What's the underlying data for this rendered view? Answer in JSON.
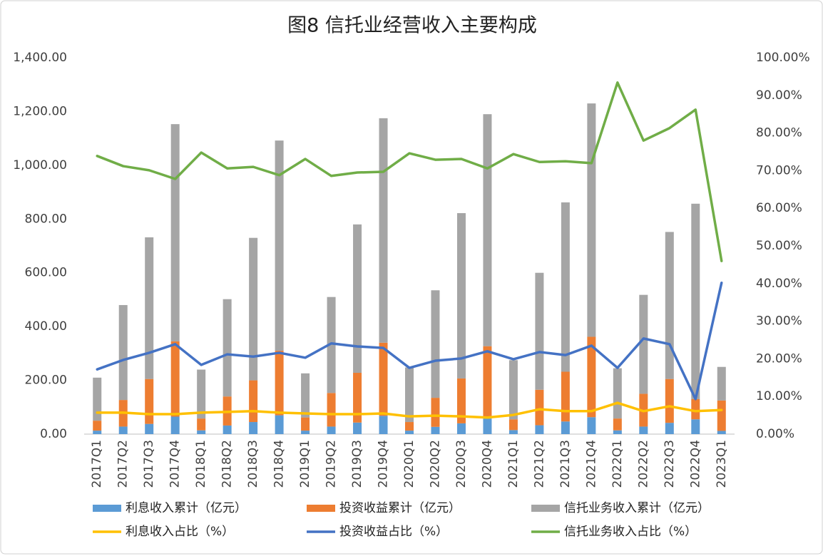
{
  "chart_data": {
    "type": "bar",
    "title": "图8  信托业经营收入主要构成",
    "categories": [
      "2017Q1",
      "2017Q2",
      "2017Q3",
      "2017Q4",
      "2018Q1",
      "2018Q2",
      "2018Q3",
      "2018Q4",
      "2019Q1",
      "2019Q2",
      "2019Q3",
      "2019Q4",
      "2020Q1",
      "2020Q2",
      "2020Q3",
      "2020Q4",
      "2021Q1",
      "2021Q2",
      "2021Q3",
      "2021Q4",
      "2022Q1",
      "2022Q2",
      "2022Q3",
      "2022Q4",
      "2023Q1"
    ],
    "series": [
      {
        "name": "利息收入累计（亿元）",
        "type": "bar",
        "color": "#5b9bd5",
        "values": [
          13,
          28,
          38,
          65,
          14,
          32,
          45,
          70,
          13,
          28,
          43,
          68,
          13,
          27,
          40,
          58,
          15,
          33,
          47,
          63,
          14,
          28,
          42,
          55,
          12
        ]
      },
      {
        "name": "投资收益累计（亿元）",
        "type": "bar",
        "color": "#ed7d31",
        "values": [
          37,
          99,
          167,
          280,
          44,
          108,
          155,
          240,
          49,
          125,
          185,
          272,
          32,
          108,
          167,
          269,
          40,
          132,
          185,
          299,
          44,
          122,
          163,
          75,
          113
        ]
      },
      {
        "name": "信托业务收入累计（亿元）",
        "type": "bar",
        "color": "#a5a5a5",
        "values": [
          160,
          353,
          527,
          808,
          182,
          362,
          530,
          782,
          164,
          357,
          552,
          835,
          203,
          400,
          615,
          863,
          220,
          435,
          630,
          868,
          187,
          368,
          547,
          727,
          125
        ]
      },
      {
        "name": "利息收入占比（%）",
        "type": "line",
        "axis": "y2",
        "color": "#ffc000",
        "values": [
          5.7,
          5.7,
          5.3,
          5.3,
          5.7,
          5.9,
          6.1,
          5.7,
          5.5,
          5.3,
          5.3,
          5.5,
          4.7,
          4.9,
          4.7,
          4.4,
          5.1,
          6.6,
          6.1,
          6.1,
          8.3,
          6.1,
          7.4,
          6.1,
          6.4
        ]
      },
      {
        "name": "投资收益占比（%）",
        "type": "line",
        "axis": "y2",
        "color": "#4472c4",
        "values": [
          17.2,
          19.7,
          21.6,
          23.9,
          18.4,
          21.2,
          20.6,
          21.6,
          20.3,
          24.1,
          23.3,
          22.9,
          17.6,
          19.5,
          20.1,
          22.0,
          19.9,
          21.8,
          21.0,
          23.5,
          17.6,
          25.4,
          23.9,
          9.3,
          40.2
        ]
      },
      {
        "name": "信托业务收入占比（%）",
        "type": "line",
        "axis": "y2",
        "color": "#70ad47",
        "values": [
          73.9,
          71.2,
          70.1,
          67.8,
          74.8,
          70.6,
          71.0,
          68.8,
          73.1,
          68.6,
          69.5,
          69.7,
          74.6,
          72.9,
          73.1,
          70.6,
          74.4,
          72.3,
          72.5,
          72.0,
          93.4,
          78.0,
          81.3,
          86.2,
          46.0
        ]
      }
    ],
    "ylim": [
      0,
      1400
    ],
    "yticks": [
      {
        "value": 0,
        "label": "0.00"
      },
      {
        "value": 200,
        "label": "200.00"
      },
      {
        "value": 400,
        "label": "400.00"
      },
      {
        "value": 600,
        "label": "600.00"
      },
      {
        "value": 800,
        "label": "800.00"
      },
      {
        "value": 1000,
        "label": "1,000.00"
      },
      {
        "value": 1200,
        "label": "1,200.00"
      },
      {
        "value": 1400,
        "label": "1,400.00"
      }
    ],
    "y2lim": [
      0,
      100
    ],
    "y2ticks": [
      {
        "value": 0,
        "label": "0.00%"
      },
      {
        "value": 10,
        "label": "10.00%"
      },
      {
        "value": 20,
        "label": "20.00%"
      },
      {
        "value": 30,
        "label": "30.00%"
      },
      {
        "value": 40,
        "label": "40.00%"
      },
      {
        "value": 50,
        "label": "50.00%"
      },
      {
        "value": 60,
        "label": "60.00%"
      },
      {
        "value": 70,
        "label": "70.00%"
      },
      {
        "value": 80,
        "label": "80.00%"
      },
      {
        "value": 90,
        "label": "90.00%"
      },
      {
        "value": 100,
        "label": "100.00%"
      }
    ],
    "grid": false
  }
}
